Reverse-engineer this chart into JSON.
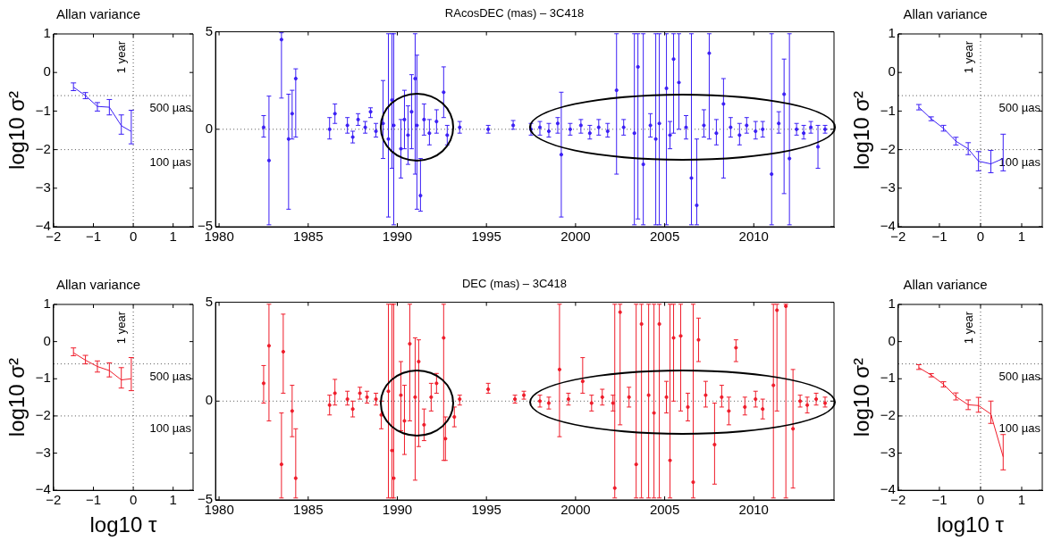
{
  "chart_data": [
    {
      "type": "line",
      "title": "Allan variance",
      "ylabel": "log10 σ²",
      "line_style": "solid",
      "grid": false,
      "legend": false,
      "xlim": [
        -2,
        1.5
      ],
      "xticks": [
        -2,
        -1,
        0,
        1
      ],
      "ylim": [
        -4,
        1
      ],
      "yticks": [
        -4,
        -3,
        -2,
        -1,
        0,
        1
      ],
      "x": [
        -1.5,
        -1.2,
        -0.9,
        -0.6,
        -0.3,
        -0.05
      ],
      "series": [
        {
          "color": "#3b1ff5",
          "values": [
            -0.38,
            -0.6,
            -0.88,
            -0.9,
            -1.38,
            -1.53
          ],
          "errors": [
            [
              -0.47,
              -0.27
            ],
            [
              -0.68,
              -0.52
            ],
            [
              -1.0,
              -0.78
            ],
            [
              -1.1,
              -0.7
            ],
            [
              -1.6,
              -1.1
            ],
            [
              -1.85,
              -0.98
            ]
          ]
        }
      ],
      "ref_lines": [
        {
          "axis": "x",
          "value": 0,
          "label": "1 year",
          "line_style": "dotted"
        },
        {
          "axis": "y",
          "value": -0.6,
          "label": "500 µas",
          "line_style": "dotted"
        },
        {
          "axis": "y",
          "value": -2,
          "label": "100 µas",
          "line_style": "dotted"
        }
      ]
    },
    {
      "type": "scatter",
      "title": "RAcosDEC (mas) – 3C418",
      "marker": "circle",
      "grid": false,
      "legend": false,
      "xlim": [
        1979.8,
        2014.5
      ],
      "xticks": [
        1980,
        1985,
        1990,
        1995,
        2000,
        2005,
        2010
      ],
      "ylim": [
        -5,
        5
      ],
      "yticks": [
        -5,
        0,
        5
      ],
      "x": [
        1982.5,
        1982.8,
        1983.5,
        1983.9,
        1984.1,
        1984.3,
        1986.2,
        1986.5,
        1987.2,
        1987.5,
        1987.8,
        1988.2,
        1988.5,
        1988.8,
        1989.2,
        1989.5,
        1989.7,
        1989.8,
        1990.2,
        1990.4,
        1990.6,
        1990.8,
        1991.0,
        1991.1,
        1991.3,
        1991.5,
        1991.8,
        1992.2,
        1992.6,
        1992.8,
        1993.5,
        1995.1,
        1996.5,
        1997.5,
        1998.0,
        1998.5,
        1999.0,
        1999.2,
        1999.7,
        2000.3,
        2000.8,
        2001.3,
        2001.8,
        2002.3,
        2002.7,
        2003.3,
        2003.5,
        2003.8,
        2004.2,
        2004.5,
        2004.7,
        2005.1,
        2005.3,
        2005.5,
        2005.8,
        2006.2,
        2006.5,
        2006.8,
        2007.2,
        2007.5,
        2007.9,
        2008.3,
        2008.7,
        2009.2,
        2009.6,
        2010.1,
        2010.5,
        2011.0,
        2011.4,
        2011.7,
        2012.0,
        2012.4,
        2012.8,
        2013.2,
        2013.6,
        2014.0
      ],
      "series": [
        {
          "color": "#3b1ff5",
          "values": [
            0.1,
            -1.6,
            4.6,
            -0.5,
            0.8,
            2.6,
            0.0,
            0.8,
            0.2,
            -0.4,
            0.5,
            0.1,
            0.9,
            -0.1,
            0.3,
            -0.5,
            1.5,
            0.2,
            -1.0,
            0.5,
            -0.3,
            0.9,
            2.6,
            0.2,
            -3.4,
            0.5,
            -0.2,
            0.4,
            1.9,
            -0.3,
            0.1,
            0.0,
            0.2,
            0.0,
            0.1,
            -0.1,
            0.3,
            -1.3,
            0.0,
            0.2,
            -0.2,
            0.1,
            -0.1,
            2.0,
            0.1,
            -0.2,
            3.2,
            -1.8,
            0.2,
            -0.5,
            0.3,
            2.1,
            -0.3,
            3.6,
            2.4,
            0.1,
            -2.5,
            -3.9,
            0.2,
            3.9,
            -0.2,
            1.3,
            0.1,
            -0.3,
            0.2,
            -0.1,
            0.0,
            -2.3,
            0.3,
            1.8,
            -1.5,
            0.0,
            -0.2,
            0.1,
            -0.9,
            0.0
          ],
          "errors": [
            [
              -0.4,
              0.7
            ],
            [
              -4.9,
              1.7
            ],
            [
              1.6,
              4.95
            ],
            [
              -4.1,
              1.8
            ],
            [
              -0.5,
              2.0
            ],
            [
              -0.4,
              3.1
            ],
            [
              -0.5,
              0.6
            ],
            [
              0.3,
              1.3
            ],
            [
              -0.2,
              0.6
            ],
            [
              -0.7,
              -0.1
            ],
            [
              0.2,
              0.8
            ],
            [
              -0.2,
              0.4
            ],
            [
              0.6,
              1.1
            ],
            [
              -0.4,
              0.3
            ],
            [
              -1.5,
              2.5
            ],
            [
              -4.5,
              4.9
            ],
            [
              -2,
              4.9
            ],
            [
              -4.9,
              4.9
            ],
            [
              -2.5,
              0.5
            ],
            [
              -1,
              2
            ],
            [
              -1.8,
              1.2
            ],
            [
              -1,
              2.8
            ],
            [
              -2.3,
              4.9
            ],
            [
              -4.1,
              3.8
            ],
            [
              -4.2,
              -1.5
            ],
            [
              -0.3,
              1.3
            ],
            [
              -0.8,
              0.5
            ],
            [
              -0.2,
              1.0
            ],
            [
              0.6,
              3.2
            ],
            [
              -0.8,
              0.2
            ],
            [
              -0.2,
              0.4
            ],
            [
              -0.2,
              0.2
            ],
            [
              0.0,
              0.45
            ],
            [
              -0.3,
              0.3
            ],
            [
              -0.3,
              0.4
            ],
            [
              -0.4,
              0.3
            ],
            [
              -0.2,
              0.6
            ],
            [
              -4.5,
              1.9
            ],
            [
              -0.3,
              0.3
            ],
            [
              -0.2,
              0.5
            ],
            [
              -0.5,
              0.2
            ],
            [
              -0.3,
              0.5
            ],
            [
              -0.4,
              0.3
            ],
            [
              -2.3,
              4.9
            ],
            [
              -0.3,
              0.5
            ],
            [
              -4.9,
              4.9
            ],
            [
              -4.6,
              4.9
            ],
            [
              -4.9,
              4.9
            ],
            [
              -0.4,
              0.8
            ],
            [
              -4.9,
              4.9
            ],
            [
              -4.9,
              4.9
            ],
            [
              -4.9,
              4.9
            ],
            [
              -1.0,
              0.4
            ],
            [
              -0.2,
              4.9
            ],
            [
              0.0,
              4.9
            ],
            [
              -0.5,
              0.7
            ],
            [
              -4.9,
              4.9
            ],
            [
              -4.9,
              -0.5
            ],
            [
              -0.4,
              1.0
            ],
            [
              -0.5,
              4.9
            ],
            [
              -0.8,
              0.5
            ],
            [
              -2.5,
              2.6
            ],
            [
              -0.4,
              0.6
            ],
            [
              -0.8,
              0.3
            ],
            [
              -0.2,
              0.6
            ],
            [
              -0.5,
              0.4
            ],
            [
              -0.4,
              0.4
            ],
            [
              -4.9,
              4.9
            ],
            [
              -0.2,
              0.9
            ],
            [
              -3.3,
              3.6
            ],
            [
              -4.9,
              4.9
            ],
            [
              -0.3,
              0.3
            ],
            [
              -0.5,
              0.2
            ],
            [
              -0.2,
              0.4
            ],
            [
              -2.0,
              0.2
            ],
            [
              -0.2,
              0.2
            ]
          ]
        }
      ],
      "ref_lines": [
        {
          "axis": "y",
          "value": 0,
          "line_style": "dotted"
        }
      ]
    },
    {
      "type": "line",
      "title": "Allan variance",
      "ylabel": "log10 σ²",
      "line_style": "solid",
      "grid": false,
      "legend": false,
      "xlim": [
        -2,
        1.5
      ],
      "xticks": [
        -2,
        -1,
        0,
        1
      ],
      "ylim": [
        -4,
        1
      ],
      "yticks": [
        -4,
        -3,
        -2,
        -1,
        0,
        1
      ],
      "x": [
        -1.5,
        -1.2,
        -0.9,
        -0.6,
        -0.3,
        -0.05,
        0.25,
        0.55
      ],
      "series": [
        {
          "color": "#3b1ff5",
          "values": [
            -0.9,
            -1.2,
            -1.45,
            -1.78,
            -1.98,
            -2.3,
            -2.37,
            -2.23
          ],
          "errors": [
            [
              -0.97,
              -0.83
            ],
            [
              -1.25,
              -1.15
            ],
            [
              -1.52,
              -1.37
            ],
            [
              -1.88,
              -1.68
            ],
            [
              -2.13,
              -1.82
            ],
            [
              -2.55,
              -2.05
            ],
            [
              -2.6,
              -2.02
            ],
            [
              -2.55,
              -1.6
            ]
          ]
        }
      ],
      "ref_lines": [
        {
          "axis": "x",
          "value": 0,
          "label": "1 year",
          "line_style": "dotted"
        },
        {
          "axis": "y",
          "value": -0.6,
          "label": "500 µas",
          "line_style": "dotted"
        },
        {
          "axis": "y",
          "value": -2,
          "label": "100 µas",
          "line_style": "dotted"
        }
      ]
    },
    {
      "type": "line",
      "title": "Allan variance",
      "xlabel": "log10 τ",
      "ylabel": "log10 σ²",
      "line_style": "solid",
      "grid": false,
      "legend": false,
      "xlim": [
        -2,
        1.5
      ],
      "xticks": [
        -2,
        -1,
        0,
        1
      ],
      "ylim": [
        -4,
        1
      ],
      "yticks": [
        -4,
        -3,
        -2,
        -1,
        0,
        1
      ],
      "x": [
        -1.5,
        -1.2,
        -0.9,
        -0.6,
        -0.3,
        -0.05
      ],
      "series": [
        {
          "color": "#ef1c2a",
          "values": [
            -0.3,
            -0.5,
            -0.67,
            -0.78,
            -1.03,
            -1.0
          ],
          "errors": [
            [
              -0.38,
              -0.17
            ],
            [
              -0.6,
              -0.37
            ],
            [
              -0.82,
              -0.52
            ],
            [
              -0.95,
              -0.57
            ],
            [
              -1.25,
              -0.7
            ],
            [
              -1.32,
              -0.43
            ]
          ]
        }
      ],
      "ref_lines": [
        {
          "axis": "x",
          "value": 0,
          "label": "1 year",
          "line_style": "dotted"
        },
        {
          "axis": "y",
          "value": -0.6,
          "label": "500 µas",
          "line_style": "dotted"
        },
        {
          "axis": "y",
          "value": -2,
          "label": "100 µas",
          "line_style": "dotted"
        }
      ]
    },
    {
      "type": "scatter",
      "title": "DEC (mas) – 3C418",
      "marker": "circle",
      "grid": false,
      "legend": false,
      "xlim": [
        1979.8,
        2014.5
      ],
      "xticks": [
        1980,
        1985,
        1990,
        1995,
        2000,
        2005,
        2010
      ],
      "ylim": [
        -5,
        5
      ],
      "yticks": [
        -5,
        0,
        5
      ],
      "x": [
        1982.5,
        1982.8,
        1983.5,
        1983.6,
        1984.1,
        1984.3,
        1986.2,
        1986.5,
        1987.2,
        1987.5,
        1987.9,
        1988.3,
        1988.8,
        1989.1,
        1989.5,
        1989.7,
        1989.8,
        1990.2,
        1990.4,
        1990.7,
        1991.0,
        1991.2,
        1991.5,
        1991.9,
        1992.2,
        1992.6,
        1992.7,
        1993.2,
        1993.5,
        1995.1,
        1996.6,
        1997.1,
        1998.0,
        1998.5,
        1999.1,
        1999.6,
        2000.4,
        2000.9,
        2001.5,
        2002.1,
        2002.2,
        2002.5,
        2003.0,
        2003.4,
        2003.7,
        2004.1,
        2004.4,
        2004.7,
        2005.1,
        2005.3,
        2005.5,
        2005.9,
        2006.3,
        2006.6,
        2006.9,
        2007.3,
        2007.8,
        2008.2,
        2008.6,
        2009.0,
        2009.5,
        2010.1,
        2010.5,
        2011.1,
        2011.3,
        2011.8,
        2012.2,
        2012.6,
        2013.0,
        2013.5,
        2014.0
      ],
      "series": [
        {
          "color": "#ef1c2a",
          "values": [
            0.9,
            2.8,
            -3.2,
            2.5,
            -0.5,
            -3.9,
            -0.2,
            0.4,
            0.1,
            -0.4,
            0.4,
            0.2,
            0.1,
            -0.7,
            0.5,
            -2.5,
            -3.9,
            0.3,
            -1.0,
            2.9,
            0.2,
            2.0,
            -1.2,
            0.2,
            0.9,
            3.2,
            -1.9,
            -0.8,
            0.1,
            0.6,
            0.1,
            0.3,
            0.0,
            -0.1,
            1.6,
            0.1,
            1.0,
            -0.1,
            0.2,
            -0.1,
            -4.4,
            4.5,
            0.2,
            -3.2,
            3.9,
            0.3,
            -0.6,
            3.9,
            0.2,
            -3.0,
            3.2,
            3.3,
            -0.3,
            -4.1,
            3.1,
            0.3,
            -2.2,
            0.2,
            -0.5,
            2.7,
            -0.3,
            0.1,
            -0.4,
            0.8,
            4.6,
            4.8,
            -1.4,
            0.0,
            -0.2,
            0.1,
            -0.1
          ],
          "errors": [
            [
              -0.1,
              1.8
            ],
            [
              -1.0,
              4.9
            ],
            [
              -4.9,
              -0.6
            ],
            [
              0.4,
              4.4
            ],
            [
              -1.8,
              0.8
            ],
            [
              -4.9,
              -1.4
            ],
            [
              -0.7,
              0.3
            ],
            [
              -0.2,
              1.1
            ],
            [
              -0.2,
              0.5
            ],
            [
              -0.8,
              0.0
            ],
            [
              0.1,
              0.7
            ],
            [
              -0.1,
              0.5
            ],
            [
              -0.2,
              0.4
            ],
            [
              -1.4,
              0.0
            ],
            [
              -4.9,
              4.9
            ],
            [
              -4.9,
              4.9
            ],
            [
              -4.9,
              4.9
            ],
            [
              -1.5,
              2.0
            ],
            [
              -2.7,
              0.8
            ],
            [
              -1.0,
              4.9
            ],
            [
              -4.0,
              3.2
            ],
            [
              -2.3,
              3.1
            ],
            [
              -2.0,
              -0.4
            ],
            [
              -0.5,
              0.9
            ],
            [
              0.4,
              1.4
            ],
            [
              -3.0,
              4.9
            ],
            [
              -3.0,
              -0.8
            ],
            [
              -1.3,
              -0.3
            ],
            [
              -0.2,
              0.3
            ],
            [
              0.4,
              0.9
            ],
            [
              -0.1,
              0.3
            ],
            [
              0.1,
              0.5
            ],
            [
              -0.3,
              0.3
            ],
            [
              -0.4,
              0.2
            ],
            [
              -1.8,
              4.9
            ],
            [
              -0.2,
              0.4
            ],
            [
              0.4,
              2.2
            ],
            [
              -0.5,
              0.3
            ],
            [
              -0.2,
              0.6
            ],
            [
              -0.5,
              0.3
            ],
            [
              -4.9,
              4.9
            ],
            [
              -1.2,
              4.9
            ],
            [
              -0.3,
              0.7
            ],
            [
              -4.9,
              4.9
            ],
            [
              -4.9,
              4.9
            ],
            [
              -4.9,
              4.9
            ],
            [
              -4.9,
              4.9
            ],
            [
              -4.9,
              4.9
            ],
            [
              -0.6,
              1.0
            ],
            [
              -4.9,
              4.9
            ],
            [
              0.0,
              4.9
            ],
            [
              -0.5,
              4.9
            ],
            [
              -1.0,
              0.4
            ],
            [
              -4.9,
              4.9
            ],
            [
              2.0,
              4.2
            ],
            [
              -0.3,
              1.0
            ],
            [
              -4.2,
              -0.1
            ],
            [
              -0.3,
              0.8
            ],
            [
              -1.2,
              0.2
            ],
            [
              2.0,
              3.1
            ],
            [
              -0.7,
              0.2
            ],
            [
              -0.3,
              0.5
            ],
            [
              -0.9,
              0.1
            ],
            [
              -4.9,
              4.9
            ],
            [
              -0.5,
              4.9
            ],
            [
              -4.9,
              4.9
            ],
            [
              -4.4,
              1.6
            ],
            [
              -0.3,
              0.3
            ],
            [
              -0.6,
              0.2
            ],
            [
              -0.2,
              0.4
            ],
            [
              -0.3,
              0.2
            ]
          ]
        }
      ],
      "ref_lines": [
        {
          "axis": "y",
          "value": 0,
          "line_style": "dotted"
        }
      ]
    },
    {
      "type": "line",
      "title": "Allan variance",
      "xlabel": "log10 τ",
      "ylabel": "log10 σ²",
      "line_style": "solid",
      "grid": false,
      "legend": false,
      "xlim": [
        -2,
        1.5
      ],
      "xticks": [
        -2,
        -1,
        0,
        1
      ],
      "ylim": [
        -4,
        1
      ],
      "yticks": [
        -4,
        -3,
        -2,
        -1,
        0,
        1
      ],
      "x": [
        -1.5,
        -1.2,
        -0.9,
        -0.6,
        -0.3,
        -0.05,
        0.25,
        0.55
      ],
      "series": [
        {
          "color": "#ef1c2a",
          "values": [
            -0.7,
            -0.9,
            -1.15,
            -1.48,
            -1.7,
            -1.72,
            -1.95,
            -3.1
          ],
          "errors": [
            [
              -0.75,
              -0.62
            ],
            [
              -0.95,
              -0.86
            ],
            [
              -1.22,
              -1.08
            ],
            [
              -1.57,
              -1.38
            ],
            [
              -1.83,
              -1.57
            ],
            [
              -1.9,
              -1.5
            ],
            [
              -2.2,
              -1.6
            ],
            [
              -3.45,
              -2.5
            ]
          ]
        }
      ],
      "ref_lines": [
        {
          "axis": "x",
          "value": 0,
          "label": "1 year",
          "line_style": "dotted"
        },
        {
          "axis": "y",
          "value": -0.6,
          "label": "500 µas",
          "line_style": "dotted"
        },
        {
          "axis": "y",
          "value": -2,
          "label": "100 µas",
          "line_style": "dotted"
        }
      ]
    }
  ]
}
